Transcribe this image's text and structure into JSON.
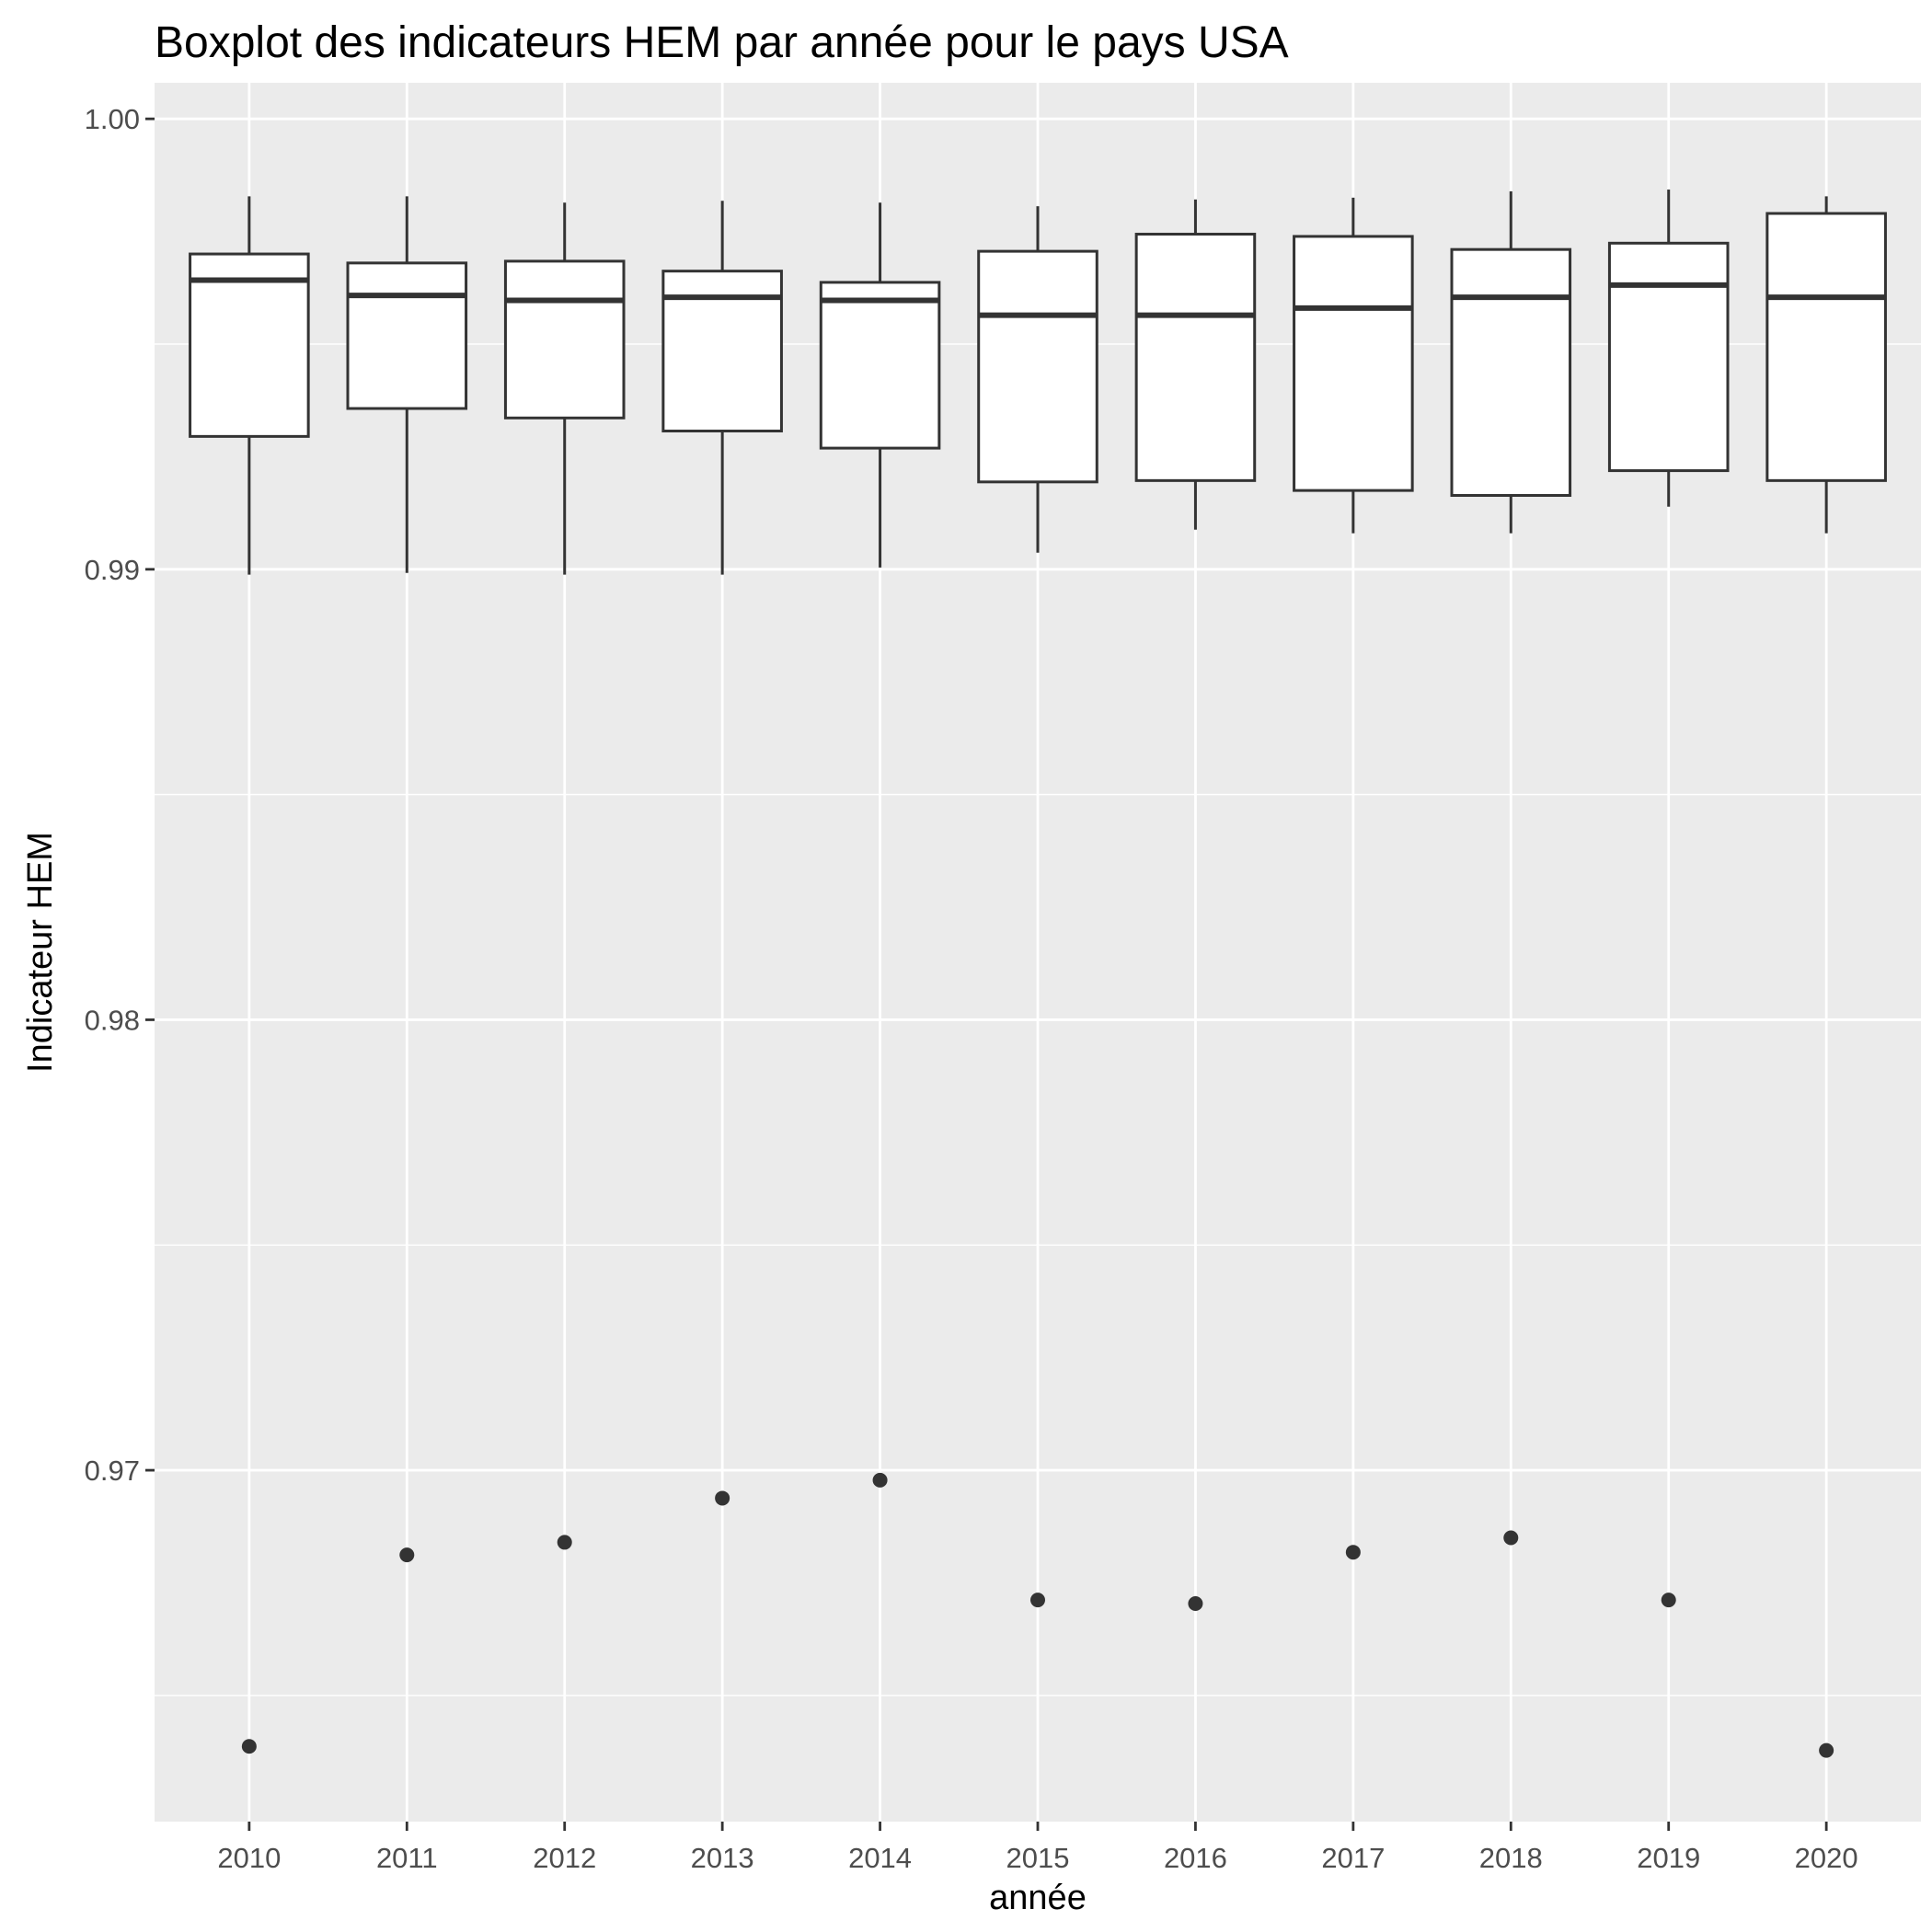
{
  "chart_data": {
    "type": "boxplot",
    "title": "Boxplot des indicateurs HEM par année pour le pays USA",
    "xlabel": "année",
    "ylabel": "Indicateur HEM",
    "categories": [
      "2010",
      "2011",
      "2012",
      "2013",
      "2014",
      "2015",
      "2016",
      "2017",
      "2018",
      "2019",
      "2020"
    ],
    "ylim": [
      0.9622,
      1.0008
    ],
    "yticks": [
      0.97,
      0.98,
      0.99,
      1.0
    ],
    "ytick_labels": [
      "0.97",
      "0.98",
      "0.99",
      "1.00"
    ],
    "grid": true,
    "boxes": [
      {
        "x": "2010",
        "min": 0.98988,
        "q1": 0.99295,
        "median": 0.99642,
        "q3": 0.997,
        "max": 0.99828,
        "outliers": [
          0.96387
        ]
      },
      {
        "x": "2011",
        "min": 0.98992,
        "q1": 0.99357,
        "median": 0.99608,
        "q3": 0.9968,
        "max": 0.99828,
        "outliers": [
          0.96812
        ]
      },
      {
        "x": "2012",
        "min": 0.98988,
        "q1": 0.99336,
        "median": 0.99597,
        "q3": 0.99684,
        "max": 0.99814,
        "outliers": [
          0.9684
        ]
      },
      {
        "x": "2013",
        "min": 0.98988,
        "q1": 0.99307,
        "median": 0.99604,
        "q3": 0.99662,
        "max": 0.99818,
        "outliers": [
          0.96938
        ]
      },
      {
        "x": "2014",
        "min": 0.99004,
        "q1": 0.99269,
        "median": 0.99597,
        "q3": 0.99637,
        "max": 0.99814,
        "outliers": [
          0.96978
        ]
      },
      {
        "x": "2015",
        "min": 0.99037,
        "q1": 0.99194,
        "median": 0.99564,
        "q3": 0.99706,
        "max": 0.99806,
        "outliers": [
          0.96712
        ]
      },
      {
        "x": "2016",
        "min": 0.99088,
        "q1": 0.99197,
        "median": 0.99564,
        "q3": 0.99744,
        "max": 0.99821,
        "outliers": [
          0.96704
        ]
      },
      {
        "x": "2017",
        "min": 0.9908,
        "q1": 0.99175,
        "median": 0.9958,
        "q3": 0.99739,
        "max": 0.99825,
        "outliers": [
          0.96818
        ]
      },
      {
        "x": "2018",
        "min": 0.9908,
        "q1": 0.99164,
        "median": 0.99604,
        "q3": 0.9971,
        "max": 0.99839,
        "outliers": [
          0.9685
        ]
      },
      {
        "x": "2019",
        "min": 0.99139,
        "q1": 0.99219,
        "median": 0.99631,
        "q3": 0.99724,
        "max": 0.99843,
        "outliers": [
          0.96712
        ]
      },
      {
        "x": "2020",
        "min": 0.9908,
        "q1": 0.99197,
        "median": 0.99604,
        "q3": 0.9979,
        "max": 0.99828,
        "outliers": [
          0.96378
        ]
      }
    ]
  }
}
